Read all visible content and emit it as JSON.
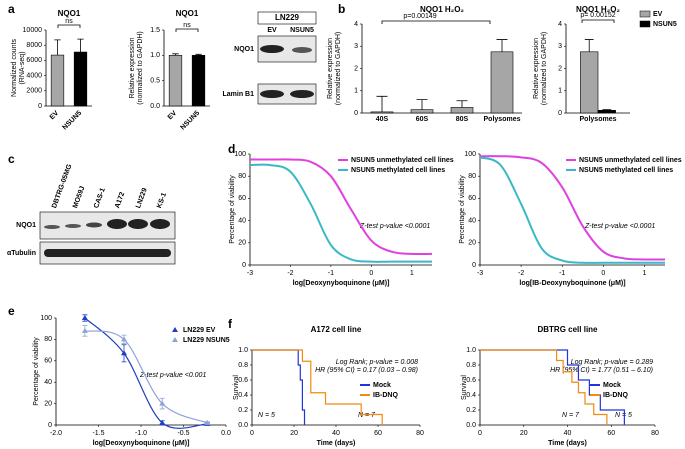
{
  "panel_labels": [
    "a",
    "b",
    "c",
    "d",
    "e",
    "f"
  ],
  "blots": [
    {
      "title": "LN229",
      "lanes": [
        "EV",
        "NSUN5"
      ],
      "rows": [
        "NQO1",
        "Lamin B1"
      ]
    },
    {
      "lanes": [
        "DBTRG-05MG",
        "MO59J",
        "CAS-1",
        "A172",
        "LN229",
        "KS-1"
      ],
      "rows": [
        "NQO1",
        "αTubulin"
      ]
    }
  ],
  "chart_data": [
    {
      "type": "bar",
      "title": "NQO1",
      "ylabel": [
        "Normalized counts",
        "(RNA-seq)"
      ],
      "categories": [
        "EV",
        "NSUN5"
      ],
      "series": [
        {
          "colors": [
            "#a6a6a6",
            "#000000"
          ],
          "values": [
            6700,
            7100
          ],
          "errors": [
            2000,
            1700
          ]
        }
      ],
      "ylim": [
        0,
        10000
      ],
      "yticks": [
        0,
        2000,
        4000,
        6000,
        8000,
        10000
      ],
      "annotations": [
        "ns"
      ]
    },
    {
      "type": "bar",
      "title": "NQO1",
      "ylabel": [
        "Relative expression",
        "(normalized to GAPDH)"
      ],
      "categories": [
        "EV",
        "NSUN5"
      ],
      "series": [
        {
          "colors": [
            "#a6a6a6",
            "#000000"
          ],
          "values": [
            1.0,
            1.0
          ],
          "errors": [
            0.03,
            0.02
          ]
        }
      ],
      "ylim": [
        0,
        1.5
      ],
      "yticks": [
        {
          "value": 0,
          "label": "0.0"
        },
        {
          "value": 0.5,
          "label": "0.5"
        },
        {
          "value": 1,
          "label": "1.0"
        },
        {
          "value": 1.5,
          "label": "1.5"
        }
      ],
      "annotations": [
        "ns"
      ]
    },
    {
      "type": "bar",
      "title": "NQO1 H₂O₂",
      "ylabel": [
        "Relative expression",
        "(normalized to  GAPDH)"
      ],
      "categories": [
        "40S",
        "60S",
        "80S",
        "Polysomes"
      ],
      "series": [
        {
          "color": "#a6a6a6",
          "values": [
            0.05,
            0.15,
            0.25,
            2.75
          ],
          "errors": [
            0.7,
            0.45,
            0.3,
            0.55
          ]
        }
      ],
      "ylim": [
        0,
        4
      ],
      "yticks": [
        0,
        1,
        2,
        3,
        4
      ],
      "annotations": [
        "p=0.00149"
      ]
    },
    {
      "type": "bar",
      "title": "NQO1 H₂O₂",
      "ylabel": [
        "Relative expression",
        "(normalized to GAPDH)"
      ],
      "categories": [
        "Polysomes"
      ],
      "series": [
        {
          "name": "EV",
          "color": "#a6a6a6",
          "values": [
            2.75
          ],
          "errors": [
            0.55
          ]
        },
        {
          "name": "NSUN5",
          "color": "#000000",
          "values": [
            0.12
          ],
          "errors": [
            0.03
          ]
        }
      ],
      "ylim": [
        0,
        4
      ],
      "yticks": [
        0,
        1,
        2,
        3,
        4
      ],
      "annotations": [
        "p= 0.00152"
      ]
    },
    {
      "type": "line",
      "ylabel": [
        "Percentage of viability"
      ],
      "xlabel": "log[Deoxynyboquinone (μM)]",
      "x": [
        -3,
        -2.5,
        -2,
        -1.5,
        -1,
        -0.5,
        0,
        0.5,
        1,
        1.5
      ],
      "series": [
        {
          "name": "NSUN5 unmethylated cell lines",
          "color": "#e040e0",
          "values": [
            95,
            95,
            95,
            93,
            80,
            50,
            22,
            12,
            10,
            10
          ]
        },
        {
          "name": "NSUN5  methylated cell lines",
          "color": "#3ab8c8",
          "values": [
            90,
            90,
            84,
            55,
            18,
            5,
            3,
            3,
            3,
            3
          ]
        }
      ],
      "xlim": [
        -3,
        1.5
      ],
      "xticks": [
        -3,
        -2,
        -1,
        0,
        1
      ],
      "ylim": [
        0,
        100
      ],
      "yticks": [
        0,
        20,
        40,
        60,
        80,
        100
      ],
      "annotations": [
        "Z-test p-value <0.0001"
      ]
    },
    {
      "type": "line",
      "ylabel": [
        "Percentage of viability"
      ],
      "xlabel": "log[IB-Deoxynyboquinone (μM)]",
      "x": [
        -3,
        -2.5,
        -2,
        -1.5,
        -1,
        -0.5,
        0,
        0.5,
        1,
        1.5
      ],
      "series": [
        {
          "name": "NSUN5 unmethylated cell lines",
          "color": "#e040e0",
          "values": [
            98,
            98,
            97,
            92,
            70,
            35,
            12,
            6,
            5,
            5
          ]
        },
        {
          "name": "NSUN5  methylated cell lines",
          "color": "#3ab8c8",
          "values": [
            97,
            90,
            55,
            15,
            4,
            2,
            2,
            2,
            2,
            2
          ]
        }
      ],
      "xlim": [
        -3,
        1.5
      ],
      "xticks": [
        -3,
        -2,
        -1,
        0,
        1
      ],
      "ylim": [
        0,
        100
      ],
      "yticks": [
        0,
        20,
        40,
        60,
        80,
        100
      ],
      "annotations": [
        "Z-test p-value <0.0001"
      ]
    },
    {
      "type": "line",
      "markers": "triangle",
      "ylabel": [
        "Percentage of viability"
      ],
      "xlabel": "log[Deoxynyboquinone (μM)]",
      "series": [
        {
          "name": "LN229 EV",
          "color": "#1f3fbf",
          "x": [
            -1.66,
            -1.2,
            -0.75,
            -0.22
          ],
          "values": [
            100,
            67,
            2,
            1
          ],
          "errors": [
            3,
            8,
            2,
            1
          ]
        },
        {
          "name": "LN229 NSUN5",
          "color": "#8fa3d9",
          "x": [
            -1.66,
            -1.2,
            -0.75,
            -0.22
          ],
          "values": [
            88,
            80,
            20,
            2
          ],
          "errors": [
            5,
            4,
            5,
            1
          ]
        }
      ],
      "xlim": [
        -2,
        0
      ],
      "xticks": [
        {
          "value": -2,
          "label": "-2.0"
        },
        {
          "value": -1.5,
          "label": "-1.5"
        },
        {
          "value": -1,
          "label": "-1.0"
        },
        {
          "value": -0.5,
          "label": "-0.5"
        },
        {
          "value": 0,
          "label": "0.0"
        }
      ],
      "ylim": [
        0,
        100
      ],
      "yticks": [
        0,
        20,
        40,
        60,
        80,
        100
      ],
      "annotations": [
        "Z-test p-value <0.001"
      ]
    },
    {
      "type": "step",
      "title": "A172 cell line",
      "ylabel": [
        "Survival"
      ],
      "xlabel": "Time (days)",
      "series": [
        {
          "name": "Mock",
          "color": "#2233dd",
          "x": [
            0,
            22,
            23,
            24,
            25
          ],
          "values": [
            1,
            0.8,
            0.6,
            0.2,
            0
          ]
        },
        {
          "name": "IB-DNQ",
          "color": "#f08a10",
          "x": [
            0,
            24,
            28,
            35,
            52,
            62
          ],
          "values": [
            1,
            0.85,
            0.43,
            0.28,
            0.14,
            0
          ]
        }
      ],
      "xlim": [
        0,
        80
      ],
      "xticks": [
        0,
        20,
        40,
        60,
        80
      ],
      "ylim": [
        0,
        1
      ],
      "yticks": [
        {
          "value": 0,
          "label": "0.0"
        },
        {
          "value": 0.2,
          "label": "0.2"
        },
        {
          "value": 0.4,
          "label": "0.4"
        },
        {
          "value": 0.6,
          "label": "0.6"
        },
        {
          "value": 0.8,
          "label": "0.8"
        },
        {
          "value": 1,
          "label": "1.0"
        }
      ],
      "annotations": [
        "Log Rank; p-value = 0.008",
        "HR (95% CI) = 0.17 (0.03 – 0.98)",
        "N = 5",
        "N = 7"
      ]
    },
    {
      "type": "step",
      "title": "DBTRG cell line",
      "ylabel": [
        "Survival"
      ],
      "xlabel": "Time (days)",
      "series": [
        {
          "name": "Mock",
          "color": "#2233dd",
          "x": [
            0,
            40,
            45,
            50,
            55,
            66
          ],
          "values": [
            1,
            0.8,
            0.6,
            0.4,
            0.2,
            0
          ]
        },
        {
          "name": "IB-DNQ",
          "color": "#f08a10",
          "x": [
            0,
            35,
            38,
            42,
            45,
            48,
            52,
            58
          ],
          "values": [
            1,
            0.86,
            0.71,
            0.57,
            0.43,
            0.28,
            0.14,
            0
          ]
        }
      ],
      "xlim": [
        0,
        80
      ],
      "xticks": [
        0,
        20,
        40,
        60,
        80
      ],
      "ylim": [
        0,
        1
      ],
      "yticks": [
        {
          "value": 0,
          "label": "0.0"
        },
        {
          "value": 0.2,
          "label": "0.2"
        },
        {
          "value": 0.4,
          "label": "0.4"
        },
        {
          "value": 0.6,
          "label": "0.6"
        },
        {
          "value": 0.8,
          "label": "0.8"
        },
        {
          "value": 1,
          "label": "1.0"
        }
      ],
      "annotations": [
        "Log Rank; p-value = 0.289",
        "HR (95% CI) = 1.77 (0.51 – 6.10)",
        "N = 7",
        "N = 5"
      ]
    }
  ]
}
